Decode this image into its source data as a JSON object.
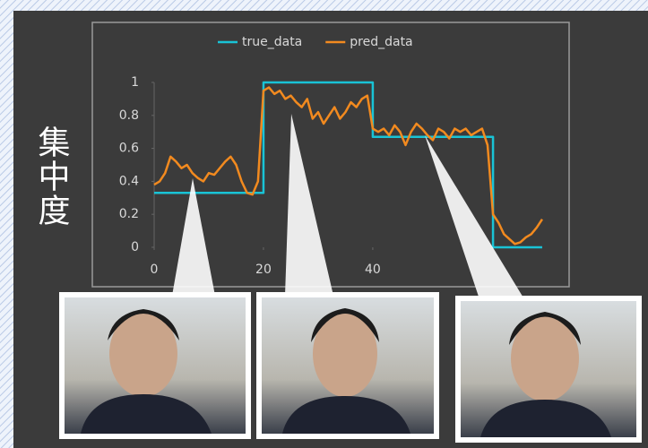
{
  "chart_data": {
    "type": "line",
    "y_label": "集中度",
    "series": [
      {
        "name": "true_data",
        "color": "#19c3d6",
        "x": [
          0,
          20,
          20,
          40,
          40,
          62,
          62,
          71
        ],
        "values": [
          0.33,
          0.33,
          1,
          1,
          0.67,
          0.67,
          0,
          0
        ]
      },
      {
        "name": "pred_data",
        "color": "#f28a1f",
        "x": [
          0,
          1,
          2,
          3,
          4,
          5,
          6,
          7,
          8,
          9,
          10,
          11,
          12,
          13,
          14,
          15,
          16,
          17,
          18,
          19,
          20,
          21,
          22,
          23,
          24,
          25,
          26,
          27,
          28,
          29,
          30,
          31,
          32,
          33,
          34,
          35,
          36,
          37,
          38,
          39,
          40,
          41,
          42,
          43,
          44,
          45,
          46,
          47,
          48,
          49,
          50,
          51,
          52,
          53,
          54,
          55,
          56,
          57,
          58,
          59,
          60,
          61,
          62,
          63,
          64,
          65,
          66,
          67,
          68,
          69,
          70,
          71
        ],
        "values": [
          0.38,
          0.4,
          0.45,
          0.55,
          0.52,
          0.48,
          0.5,
          0.45,
          0.42,
          0.4,
          0.45,
          0.44,
          0.48,
          0.52,
          0.55,
          0.5,
          0.4,
          0.33,
          0.32,
          0.4,
          0.95,
          0.97,
          0.93,
          0.95,
          0.9,
          0.92,
          0.88,
          0.85,
          0.9,
          0.78,
          0.82,
          0.75,
          0.8,
          0.85,
          0.78,
          0.82,
          0.88,
          0.85,
          0.9,
          0.92,
          0.72,
          0.7,
          0.72,
          0.68,
          0.74,
          0.7,
          0.62,
          0.7,
          0.75,
          0.72,
          0.68,
          0.65,
          0.72,
          0.7,
          0.66,
          0.72,
          0.7,
          0.72,
          0.68,
          0.7,
          0.72,
          0.62,
          0.2,
          0.15,
          0.08,
          0.05,
          0.02,
          0.03,
          0.06,
          0.08,
          0.12,
          0.17
        ]
      }
    ],
    "xlim": [
      0,
      71.5
    ],
    "ylim": [
      0,
      1
    ],
    "xticks": [
      0,
      20,
      40
    ],
    "yticks": [
      0,
      0.2,
      0.4,
      0.6,
      0.8,
      1
    ]
  }
}
